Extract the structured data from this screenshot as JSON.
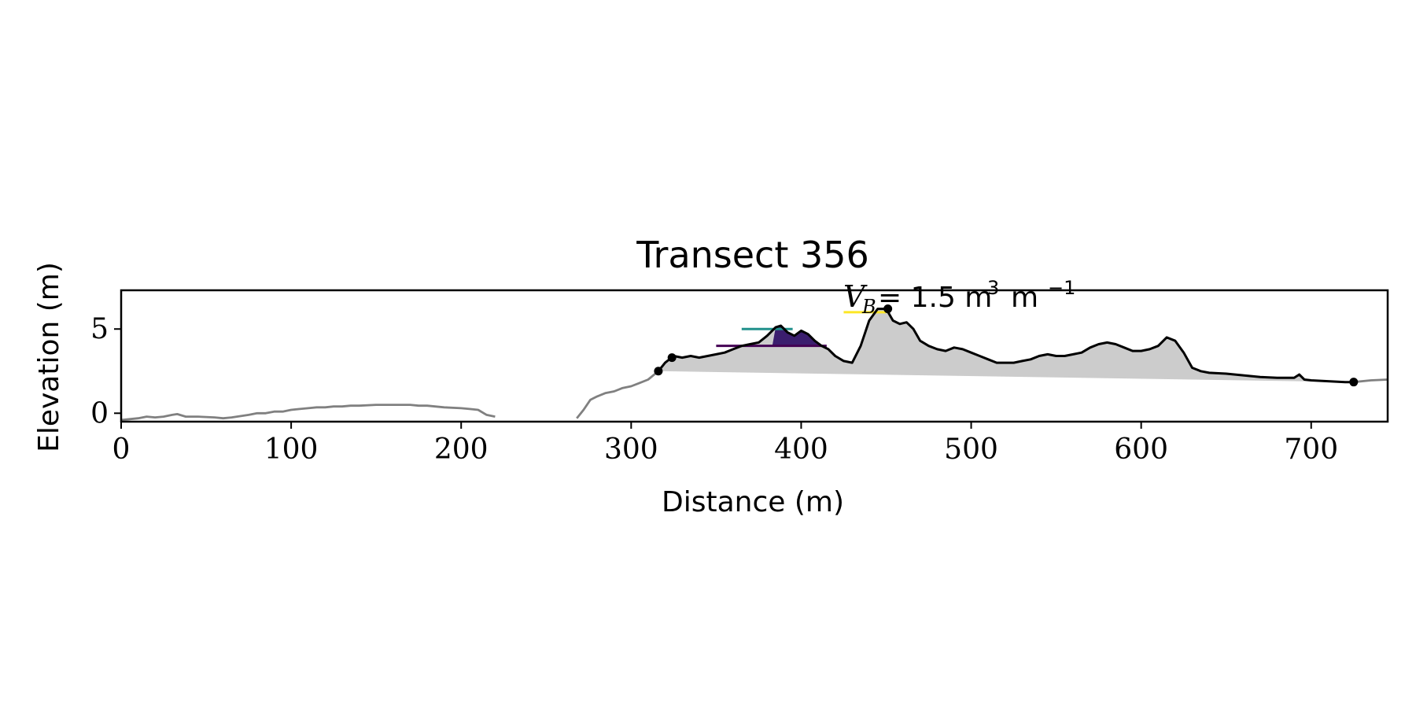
{
  "chart_data": {
    "type": "line",
    "title": "Transect 356",
    "xlabel": "Distance (m)",
    "ylabel": "Elevation (m)",
    "xlim": [
      0,
      745
    ],
    "ylim": [
      -0.5,
      7.3
    ],
    "xticks": [
      0,
      100,
      200,
      300,
      400,
      500,
      600,
      700
    ],
    "yticks": [
      0,
      5
    ],
    "grid": false,
    "legend": "none",
    "annotation": {
      "symbol": "V",
      "subscript": "B",
      "text": "= 1.5 m",
      "sup1": "3",
      "unit2": "m",
      "sup2": "−1"
    },
    "colors": {
      "profile_outside": "#808080",
      "profile_inside": "#000000",
      "fill": "#cccccc",
      "dune_fill": "#3b1e6e",
      "level_purple": "#440154",
      "level_teal": "#21918c",
      "level_yellow": "#fde725"
    },
    "series": [
      {
        "role": "profile-left",
        "x": [
          0,
          5,
          10,
          15,
          20,
          25,
          30,
          33,
          38,
          45,
          55,
          60,
          65,
          75,
          80,
          85,
          90,
          95,
          100,
          105,
          110,
          115,
          120,
          125,
          130,
          135,
          140,
          150,
          160,
          170,
          175,
          180,
          190,
          200,
          205,
          210,
          215,
          220
        ],
        "y": [
          -0.4,
          -0.35,
          -0.3,
          -0.2,
          -0.25,
          -0.2,
          -0.1,
          -0.05,
          -0.2,
          -0.2,
          -0.25,
          -0.3,
          -0.25,
          -0.1,
          0.0,
          0.0,
          0.1,
          0.1,
          0.2,
          0.25,
          0.3,
          0.35,
          0.35,
          0.4,
          0.4,
          0.45,
          0.45,
          0.5,
          0.5,
          0.5,
          0.45,
          0.45,
          0.35,
          0.3,
          0.25,
          0.2,
          -0.1,
          -0.2
        ]
      },
      {
        "role": "profile-mid",
        "x": [
          268,
          272,
          276,
          280,
          285,
          290,
          295,
          300,
          305,
          310,
          316
        ],
        "y": [
          -0.3,
          0.2,
          0.8,
          1.0,
          1.2,
          1.3,
          1.5,
          1.6,
          1.8,
          2.0,
          2.5
        ]
      },
      {
        "role": "profile-main",
        "x": [
          316,
          320,
          325,
          330,
          335,
          340,
          345,
          350,
          355,
          360,
          365,
          370,
          375,
          380,
          385,
          388,
          392,
          396,
          400,
          404,
          408,
          412,
          416,
          420,
          425,
          430,
          435,
          440,
          445,
          450,
          454,
          458,
          462,
          466,
          470,
          475,
          480,
          485,
          490,
          495,
          500,
          505,
          510,
          515,
          520,
          525,
          530,
          535,
          540,
          545,
          550,
          555,
          560,
          565,
          570,
          575,
          580,
          585,
          590,
          595,
          600,
          605,
          610,
          615,
          620,
          625,
          630,
          635,
          640,
          650,
          660,
          670,
          680,
          690,
          693,
          696,
          700,
          710,
          720,
          725
        ],
        "y": [
          2.5,
          3.0,
          3.4,
          3.3,
          3.4,
          3.3,
          3.4,
          3.5,
          3.6,
          3.8,
          4.0,
          4.1,
          4.2,
          4.6,
          5.1,
          5.2,
          4.8,
          4.6,
          4.9,
          4.7,
          4.3,
          4.0,
          3.8,
          3.4,
          3.1,
          3.0,
          4.0,
          5.5,
          6.2,
          6.2,
          5.5,
          5.3,
          5.4,
          5.0,
          4.3,
          4.0,
          3.8,
          3.7,
          3.9,
          3.8,
          3.6,
          3.4,
          3.2,
          3.0,
          3.0,
          3.0,
          3.1,
          3.2,
          3.4,
          3.5,
          3.4,
          3.4,
          3.5,
          3.6,
          3.9,
          4.1,
          4.2,
          4.1,
          3.9,
          3.7,
          3.7,
          3.8,
          4.0,
          4.5,
          4.3,
          3.6,
          2.7,
          2.5,
          2.4,
          2.35,
          2.25,
          2.15,
          2.1,
          2.1,
          2.3,
          2.0,
          1.95,
          1.9,
          1.85,
          1.85
        ]
      },
      {
        "role": "profile-right",
        "x": [
          725,
          735,
          745
        ],
        "y": [
          1.85,
          1.95,
          2.0
        ]
      }
    ],
    "baseline": {
      "x": [
        316,
        725
      ],
      "y": [
        2.5,
        1.85
      ]
    },
    "markers": {
      "x": [
        316,
        324,
        451,
        725
      ],
      "y": [
        2.5,
        3.3,
        6.2,
        1.85
      ]
    },
    "levels": [
      {
        "color": "level_purple",
        "x": [
          350,
          415
        ],
        "y": 4.0
      },
      {
        "color": "level_teal",
        "x": [
          365,
          395
        ],
        "y": 5.0
      },
      {
        "color": "level_yellow",
        "x": [
          425,
          450
        ],
        "y": 6.0
      }
    ],
    "dune_fill": {
      "x_range": [
        383,
        412
      ],
      "level": 4.0
    }
  }
}
